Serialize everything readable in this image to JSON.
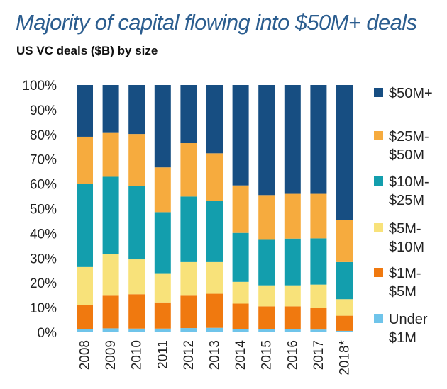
{
  "title": "Majority of capital flowing into $50M+ deals",
  "subtitle": "US VC deals ($B) by size",
  "chart_data": {
    "type": "bar",
    "stacked": true,
    "percent_stacked": true,
    "title": "Majority of capital flowing into $50M+ deals",
    "subtitle": "US VC deals ($B) by size",
    "categories": [
      "2008",
      "2009",
      "2010",
      "2011",
      "2012",
      "2013",
      "2014",
      "2015",
      "2016",
      "2017",
      "2018*"
    ],
    "ylim": [
      0,
      100
    ],
    "yticks": [
      "0%",
      "10%",
      "20%",
      "30%",
      "40%",
      "50%",
      "60%",
      "70%",
      "80%",
      "90%",
      "100%"
    ],
    "grid": false,
    "legend_position": "right",
    "series": [
      {
        "name": "Under $1M",
        "color": "#6fc4ea",
        "values": [
          1.4,
          1.6,
          1.5,
          1.5,
          1.7,
          1.8,
          1.4,
          1.2,
          1.2,
          1.1,
          0.6
        ]
      },
      {
        "name": "$1M-$5M",
        "color": "#f0790f",
        "values": [
          9.5,
          13.2,
          13.9,
          10.6,
          13.1,
          13.8,
          10.2,
          9.3,
          9.3,
          8.9,
          6.1
        ]
      },
      {
        "name": "$5M-$10M",
        "color": "#f8e27a",
        "values": [
          15.5,
          16.9,
          14.1,
          11.8,
          13.6,
          12.8,
          8.8,
          8.5,
          8.5,
          9.3,
          6.7
        ]
      },
      {
        "name": "$10M-$25M",
        "color": "#139ead",
        "values": [
          33.5,
          31.2,
          29.8,
          24.7,
          26.5,
          24.8,
          19.8,
          18.4,
          18.9,
          18.7,
          15.0
        ]
      },
      {
        "name": "$25M-$50M",
        "color": "#f6ab3e",
        "values": [
          19.2,
          18.0,
          20.9,
          18.1,
          21.6,
          19.2,
          19.2,
          18.1,
          18.1,
          18.0,
          16.9
        ]
      },
      {
        "name": "$50M+",
        "color": "#174e82",
        "values": [
          20.9,
          19.1,
          19.8,
          33.3,
          23.5,
          27.6,
          40.6,
          44.5,
          44.0,
          44.0,
          54.7
        ]
      }
    ]
  },
  "legend": [
    {
      "color": "#174e82",
      "line1": "$50M+",
      "line2": ""
    },
    {
      "color": "#f6ab3e",
      "line1": "$25M-",
      "line2": "$50M"
    },
    {
      "color": "#139ead",
      "line1": "$10M-",
      "line2": "$25M"
    },
    {
      "color": "#f8e27a",
      "line1": "$5M-",
      "line2": "$10M"
    },
    {
      "color": "#f0790f",
      "line1": "$1M-",
      "line2": "$5M"
    },
    {
      "color": "#6fc4ea",
      "line1": "Under",
      "line2": "$1M"
    }
  ]
}
